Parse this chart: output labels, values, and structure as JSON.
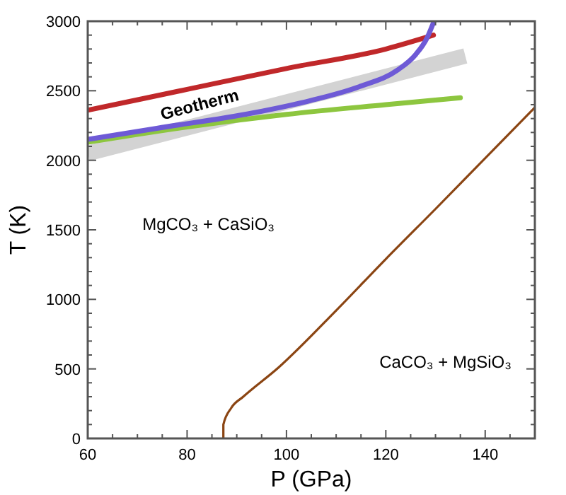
{
  "chart_data": {
    "type": "line",
    "xlabel": "P (GPa)",
    "ylabel": "T (K)",
    "xlim": [
      60,
      150
    ],
    "ylim": [
      0,
      3000
    ],
    "xticks": [
      60,
      80,
      100,
      120,
      140
    ],
    "yticks": [
      0,
      500,
      1000,
      1500,
      2000,
      2500,
      3000
    ],
    "grid": false,
    "marker": "none",
    "line_style": "solid",
    "series": [
      {
        "name": "Geotherm",
        "type": "line",
        "color": "#d3d3d3",
        "x": [
          60,
          136
        ],
        "values": [
          2050,
          2750
        ]
      },
      {
        "color": "#c0282a",
        "x": [
          60,
          80,
          100,
          120,
          129.6
        ],
        "values": [
          2360,
          2510,
          2660,
          2800,
          2900
        ]
      },
      {
        "color": "#8dc63f",
        "x": [
          60,
          80,
          100,
          120,
          135
        ],
        "values": [
          2130,
          2240,
          2330,
          2400,
          2450
        ]
      },
      {
        "color": "#6e5ad6",
        "x": [
          60,
          73.9,
          93.2,
          104.9,
          114.7,
          122.4,
          126,
          128.3,
          129.7
        ],
        "values": [
          2150,
          2230,
          2340,
          2430,
          2530,
          2650,
          2760,
          2880,
          3000
        ]
      },
      {
        "color": "#8b4513",
        "x": [
          87.3,
          87.3,
          88.9,
          91.3,
          98.4,
          110,
          120,
          130,
          150
        ],
        "values": [
          0,
          100,
          220,
          300,
          510,
          920,
          1290,
          1650,
          2380
        ]
      }
    ],
    "annotations": [
      "MgCO₃ + CaSiO₃",
      "CaCO₃ + MgSiO₃"
    ]
  }
}
